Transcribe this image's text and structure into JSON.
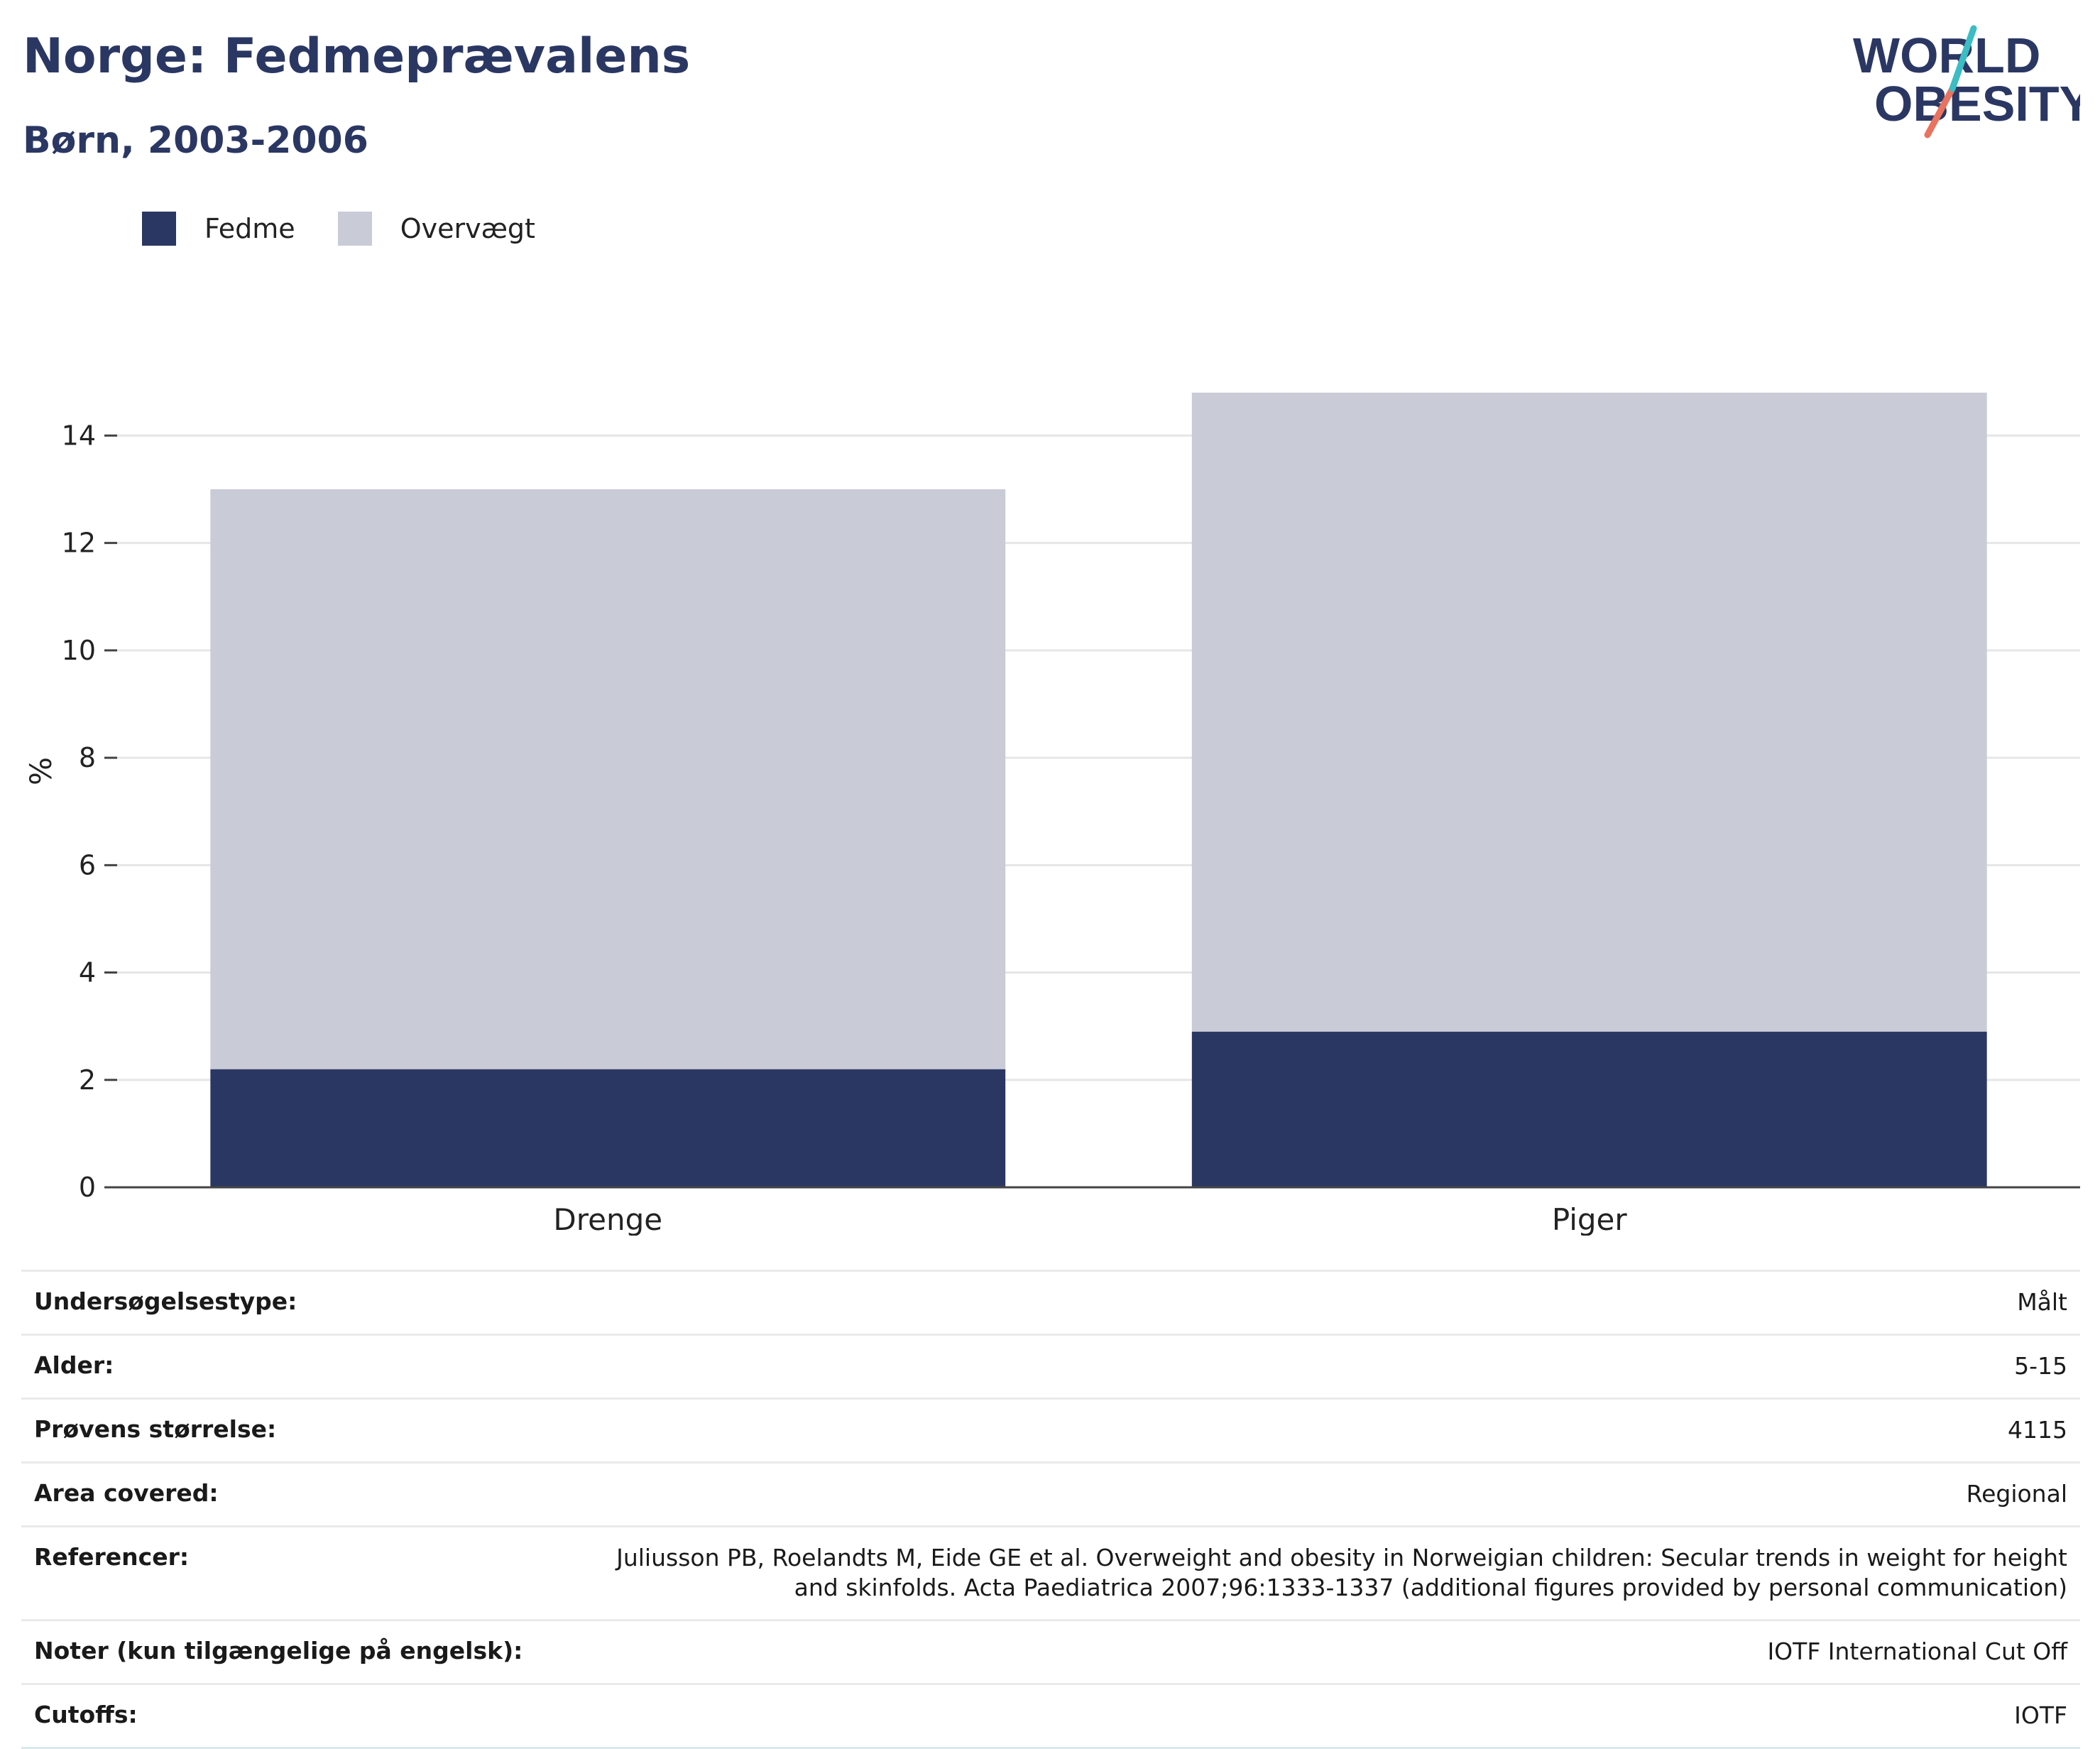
{
  "header": {
    "title": "Norge: Fedmeprævalens",
    "subtitle": "Børn, 2003-2006",
    "logo_line1": "WORLD",
    "logo_line2": "OBESITY"
  },
  "legend": [
    {
      "label": "Fedme",
      "color": "#2b3763"
    },
    {
      "label": "Overvægt",
      "color": "#c9cbd7"
    }
  ],
  "chart_data": {
    "type": "bar",
    "stacked": true,
    "categories": [
      "Drenge",
      "Piger"
    ],
    "series": [
      {
        "name": "Fedme",
        "values": [
          2.2,
          2.9
        ],
        "color": "#2b3763"
      },
      {
        "name": "Overvægt",
        "values": [
          10.8,
          11.9
        ],
        "color": "#c9cbd7"
      }
    ],
    "ylabel": "%",
    "ylim": [
      0,
      15.5
    ],
    "yticks": [
      0,
      2,
      4,
      6,
      8,
      10,
      12,
      14
    ],
    "grid": true,
    "legend_position": "top-left"
  },
  "meta": [
    {
      "key": "Undersøgelsestype:",
      "value": "Målt"
    },
    {
      "key": "Alder:",
      "value": "5-15"
    },
    {
      "key": "Prøvens størrelse:",
      "value": "4115"
    },
    {
      "key": "Area covered:",
      "value": "Regional"
    },
    {
      "key": "Referencer:",
      "value": "Juliusson PB, Roelandts M, Eide GE et al. Overweight and obesity in Norweigian children: Secular trends in weight for height and skinfolds. Acta Paediatrica 2007;96:1333-1337 (additional figures provided by personal communication)"
    },
    {
      "key": "Noter (kun tilgængelige på engelsk):",
      "value": "IOTF International Cut Off"
    },
    {
      "key": "Cutoffs:",
      "value": "IOTF"
    }
  ]
}
